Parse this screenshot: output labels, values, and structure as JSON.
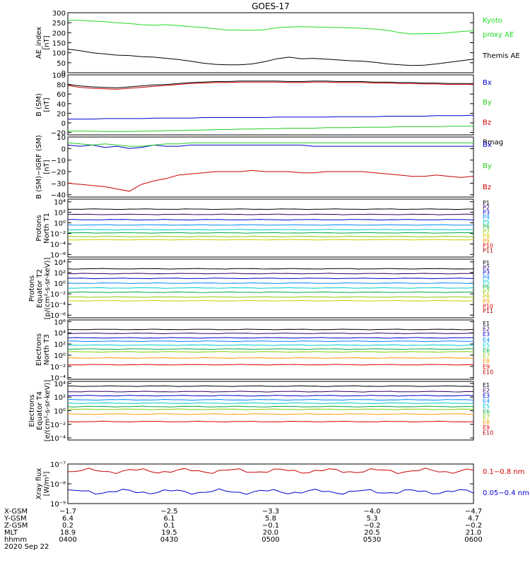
{
  "title": "GOES-17",
  "chart_data": [
    {
      "type": "line",
      "ylabel": [
        "AE_index",
        "[nT]"
      ],
      "ylim": [
        0,
        300
      ],
      "yticks": [
        "0",
        "50",
        "100",
        "150",
        "200",
        "250",
        "300"
      ],
      "series": [
        {
          "name": "Kyoto proxy AE",
          "color": "#22dd22",
          "y": [
            262,
            262,
            258,
            255,
            250,
            246,
            240,
            238,
            240,
            236,
            230,
            226,
            220,
            214,
            213,
            212,
            215,
            225,
            228,
            230,
            229,
            227,
            226,
            224,
            222,
            218,
            212,
            200,
            194,
            196,
            195,
            200,
            206,
            210
          ],
          "label_lines": [
            "Kyoto",
            "proxy AE"
          ]
        },
        {
          "name": "Themis AE",
          "color": "#000000",
          "y": [
            118,
            110,
            100,
            94,
            88,
            86,
            80,
            78,
            72,
            66,
            58,
            48,
            42,
            40,
            40,
            44,
            55,
            70,
            78,
            70,
            72,
            68,
            64,
            60,
            58,
            52,
            44,
            40,
            36,
            38,
            44,
            52,
            60,
            68
          ],
          "label_lines": [
            "Themis AE"
          ]
        }
      ]
    },
    {
      "type": "line",
      "ylabel": [
        "B (SM)",
        "[nT]"
      ],
      "ylim": [
        -25,
        100
      ],
      "yticks": [
        "−20",
        "0",
        "20",
        "40",
        "60",
        "80",
        "100"
      ],
      "series": [
        {
          "name": "Bx",
          "color": "#0000cc",
          "y": [
            8,
            8,
            8,
            9,
            9,
            9,
            9,
            10,
            10,
            10,
            10,
            11,
            11,
            11,
            11,
            11,
            11,
            12,
            12,
            12,
            12,
            12,
            13,
            13,
            13,
            13,
            14,
            14,
            14,
            14,
            15,
            15,
            15,
            16
          ],
          "label_lines": [
            "Bx"
          ]
        },
        {
          "name": "By",
          "color": "#22cc22",
          "y": [
            -17,
            -17,
            -17,
            -18,
            -18,
            -18,
            -17,
            -17,
            -16,
            -16,
            -15,
            -15,
            -14,
            -14,
            -13,
            -13,
            -12,
            -12,
            -11,
            -11,
            -11,
            -10,
            -10,
            -10,
            -9,
            -9,
            -9,
            -8,
            -8,
            -8,
            -8,
            -7,
            -7,
            -7
          ],
          "label_lines": [
            "By"
          ]
        },
        {
          "name": "Bz",
          "color": "#cc0000",
          "y": [
            78,
            74,
            72,
            71,
            70,
            72,
            74,
            76,
            78,
            80,
            82,
            83,
            84,
            84,
            85,
            85,
            85,
            85,
            84,
            84,
            85,
            85,
            84,
            84,
            84,
            83,
            83,
            82,
            82,
            81,
            81,
            80,
            80,
            80
          ],
          "label_lines": [
            "Bz"
          ]
        },
        {
          "name": "Bmag",
          "color": "#000000",
          "y": [
            80,
            77,
            75,
            74,
            73,
            75,
            77,
            79,
            80,
            82,
            84,
            85,
            86,
            86,
            87,
            87,
            87,
            87,
            86,
            86,
            87,
            87,
            86,
            86,
            86,
            85,
            85,
            84,
            84,
            83,
            83,
            82,
            82,
            82
          ],
          "label_lines": [
            "Bmag"
          ]
        }
      ]
    },
    {
      "type": "line",
      "ylabel": [
        "B (SM)−IGRF (SM)",
        "[nT]"
      ],
      "ylim": [
        -42,
        10
      ],
      "yticks": [
        "−40",
        "−30",
        "−20",
        "−10",
        "0",
        "10"
      ],
      "series": [
        {
          "name": "Bx",
          "color": "#0000cc",
          "y": [
            3,
            2,
            3,
            1,
            2,
            0,
            1,
            3,
            2,
            2,
            3,
            3,
            3,
            3,
            3,
            3,
            3,
            3,
            3,
            3,
            2,
            2,
            2,
            2,
            2,
            2,
            2,
            2,
            2,
            2,
            2,
            2,
            2,
            2
          ],
          "label_lines": [
            "Bx"
          ]
        },
        {
          "name": "By",
          "color": "#22cc22",
          "y": [
            5,
            4,
            3,
            4,
            3,
            2,
            2,
            3,
            4,
            4,
            5,
            5,
            5,
            5,
            5,
            5,
            5,
            5,
            5,
            5,
            5,
            5,
            5,
            5,
            5,
            5,
            5,
            5,
            5,
            5,
            5,
            5,
            5,
            5
          ],
          "label_lines": [
            "By"
          ]
        },
        {
          "name": "Bz",
          "color": "#cc0000",
          "y": [
            -30,
            -31,
            -32,
            -33,
            -35,
            -37,
            -31,
            -28,
            -26,
            -23,
            -22,
            -21,
            -20,
            -20,
            -20,
            -19,
            -20,
            -20,
            -20,
            -21,
            -21,
            -20,
            -20,
            -20,
            -20,
            -21,
            -22,
            -23,
            -24,
            -24,
            -23,
            -24,
            -25,
            -24
          ],
          "label_lines": [
            "Bz"
          ]
        }
      ]
    },
    {
      "type": "line",
      "ylabel": [
        "Protons",
        "North T1"
      ],
      "scale": "log",
      "ylim_log10": [
        -6.5,
        4.5
      ],
      "yticks": [
        "10⁻⁶",
        "10⁻⁴",
        "10⁻²",
        "10⁰",
        "10²",
        "10⁴"
      ],
      "series": [
        {
          "name": "P1",
          "color": "#000000",
          "log_y": 2.6,
          "label_lines": [
            "P1"
          ]
        },
        {
          "name": "P2",
          "color": "#330066",
          "log_y": 1.6,
          "label_lines": [
            "P2"
          ]
        },
        {
          "name": "P3",
          "color": "#0000cc",
          "log_y": 0.6,
          "label_lines": [
            "P3"
          ]
        },
        {
          "name": "P4",
          "color": "#0088ff",
          "log_y": -0.4,
          "label_lines": [
            "P4"
          ]
        },
        {
          "name": "P5",
          "color": "#00cccc",
          "log_y": -1.3,
          "label_lines": [
            "P5"
          ]
        },
        {
          "name": "P6",
          "color": "#00aa44",
          "log_y": -1.9,
          "label_lines": [
            "P6"
          ]
        },
        {
          "name": "P7",
          "color": "#88cc00",
          "log_y": -2.6,
          "label_lines": [
            "P7"
          ]
        },
        {
          "name": "P8",
          "color": "#cccc00",
          "log_y": -3.2,
          "label_lines": [
            "P8"
          ]
        },
        {
          "name": "P9",
          "color": "#ff9900",
          "label_lines": [
            "P9"
          ]
        },
        {
          "name": "P10",
          "color": "#dd0000",
          "label_lines": [
            "P10"
          ]
        },
        {
          "name": "P11",
          "color": "#aa0000",
          "label_lines": [
            "P11"
          ]
        }
      ]
    },
    {
      "type": "line",
      "ylabel": [
        "Protons",
        "Equator T2",
        "[p/(cm²-s-sr-keV)]"
      ],
      "scale": "log",
      "ylim_log10": [
        -6.5,
        4.5
      ],
      "yticks": [
        "10⁻⁶",
        "10⁻⁴",
        "10⁻²",
        "10⁰",
        "10²",
        "10⁴"
      ],
      "series": [
        {
          "name": "P1",
          "color": "#000000",
          "log_y": 2.7,
          "label_lines": [
            "P1"
          ]
        },
        {
          "name": "P2",
          "color": "#330066",
          "log_y": 1.8,
          "label_lines": [
            "P2"
          ]
        },
        {
          "name": "P3",
          "color": "#0000cc",
          "log_y": 0.9,
          "label_lines": [
            "P3"
          ]
        },
        {
          "name": "P4",
          "color": "#0088ff",
          "log_y": 0.0,
          "label_lines": [
            "P4"
          ]
        },
        {
          "name": "P5",
          "color": "#00cccc",
          "log_y": -0.9,
          "label_lines": [
            "P5"
          ]
        },
        {
          "name": "P6",
          "color": "#00aa44",
          "log_y": -1.7,
          "label_lines": [
            "P6"
          ]
        },
        {
          "name": "P7",
          "color": "#88cc00",
          "log_y": -2.6,
          "label_lines": [
            "P7"
          ]
        },
        {
          "name": "P8",
          "color": "#cccc00",
          "log_y": -3.3,
          "label_lines": [
            "P8"
          ]
        },
        {
          "name": "P9",
          "color": "#ff9900",
          "label_lines": [
            "P9"
          ]
        },
        {
          "name": "P10",
          "color": "#dd0000",
          "label_lines": [
            "P10"
          ]
        },
        {
          "name": "P11",
          "color": "#aa0000",
          "label_lines": [
            "P11"
          ]
        }
      ]
    },
    {
      "type": "line",
      "ylabel": [
        "Electrons",
        "North T3"
      ],
      "scale": "log",
      "ylim_log10": [
        -4.3,
        6.3
      ],
      "yticks": [
        "10⁻⁴",
        "10⁻²",
        "10⁰",
        "10²",
        "10⁴",
        "10⁶"
      ],
      "series": [
        {
          "name": "E1",
          "color": "#000000",
          "log_y": 4.6,
          "label_lines": [
            "E1"
          ]
        },
        {
          "name": "E2",
          "color": "#330066",
          "log_y": 3.9,
          "label_lines": [
            "E2"
          ]
        },
        {
          "name": "E3",
          "color": "#0000cc",
          "log_y": 3.1,
          "label_lines": [
            "E3"
          ]
        },
        {
          "name": "E4",
          "color": "#0088ff",
          "log_y": 2.5,
          "label_lines": [
            "E4"
          ]
        },
        {
          "name": "E5",
          "color": "#00cccc",
          "log_y": 1.8,
          "label_lines": [
            "E5"
          ]
        },
        {
          "name": "E6",
          "color": "#00aa44",
          "log_y": 1.1,
          "label_lines": [
            "E6"
          ]
        },
        {
          "name": "E7",
          "color": "#88cc00",
          "log_y": 0.6,
          "label_lines": [
            "E7"
          ]
        },
        {
          "name": "E8",
          "color": "#ff9900",
          "log_y": -0.5,
          "label_lines": [
            "E8"
          ]
        },
        {
          "name": "E9",
          "color": "#dd0000",
          "log_y": -1.7,
          "label_lines": [
            "E9"
          ]
        },
        {
          "name": "E10",
          "color": "#aa0000",
          "label_lines": [
            "E10"
          ]
        }
      ]
    },
    {
      "type": "line",
      "ylabel": [
        "Electrons",
        "Equator T4",
        "[e/(cm²-s-sr-keV)]"
      ],
      "scale": "log",
      "ylim_log10": [
        -4.3,
        4.3
      ],
      "yticks": [
        "10⁻⁴",
        "10⁻²",
        "10⁰",
        "10²",
        "10⁴"
      ],
      "series": [
        {
          "name": "E1",
          "color": "#000000",
          "log_y": 3.6,
          "label_lines": [
            "E1"
          ]
        },
        {
          "name": "E2",
          "color": "#330066",
          "log_y": 2.8,
          "label_lines": [
            "E2"
          ]
        },
        {
          "name": "E3",
          "color": "#0000cc",
          "log_y": 2.2,
          "label_lines": [
            "E3"
          ]
        },
        {
          "name": "E4",
          "color": "#0088ff",
          "log_y": 1.6,
          "label_lines": [
            "E4"
          ]
        },
        {
          "name": "E5",
          "color": "#00cccc",
          "log_y": 1.1,
          "label_lines": [
            "E5"
          ]
        },
        {
          "name": "E6",
          "color": "#00aa44",
          "log_y": 0.6,
          "label_lines": [
            "E6"
          ]
        },
        {
          "name": "E7",
          "color": "#88cc00",
          "log_y": 0.2,
          "label_lines": [
            "E7"
          ]
        },
        {
          "name": "E8",
          "color": "#ff9900",
          "log_y": -0.5,
          "label_lines": [
            "E8"
          ]
        },
        {
          "name": "E9",
          "color": "#dd0000",
          "log_y": -1.6,
          "label_lines": [
            "E9"
          ]
        },
        {
          "name": "E10",
          "color": "#aa0000",
          "label_lines": [
            "E10"
          ]
        }
      ]
    },
    {
      "type": "line",
      "ylabel": [
        "Xray flux",
        "[W/m²]"
      ],
      "scale": "log",
      "ylim_log10": [
        -9,
        -7
      ],
      "yticks": [
        "10⁻⁹",
        "10⁻⁸",
        "10⁻⁷"
      ],
      "series": [
        {
          "name": "0.1−0.8 nm",
          "color": "#cc0000",
          "log_y": -7.35,
          "label_lines": [
            "0.1−0.8 nm"
          ]
        },
        {
          "name": "0.05−0.4 nm",
          "color": "#0000cc",
          "log_y": -8.4,
          "label_lines": [
            "0.05−0.4 nm"
          ]
        }
      ]
    }
  ],
  "x_axis": {
    "row_labels": [
      "X-GSM",
      "Y-GSM",
      "Z-GSM",
      "MLT",
      "hhmm"
    ],
    "columns": [
      [
        "−1.7",
        "6.4",
        "0.2",
        "18.9",
        "0400"
      ],
      [
        "−2.5",
        "6.1",
        "0.1",
        "19.5",
        "0430"
      ],
      [
        "−3.3",
        "5.8",
        "−0.1",
        "20.0",
        "0500"
      ],
      [
        "−4.0",
        "5.3",
        "−0.2",
        "20.5",
        "0530"
      ],
      [
        "−4.7",
        "4.7",
        "−0.2",
        "21.0",
        "0600"
      ]
    ],
    "date": "2020 Sep 22"
  }
}
